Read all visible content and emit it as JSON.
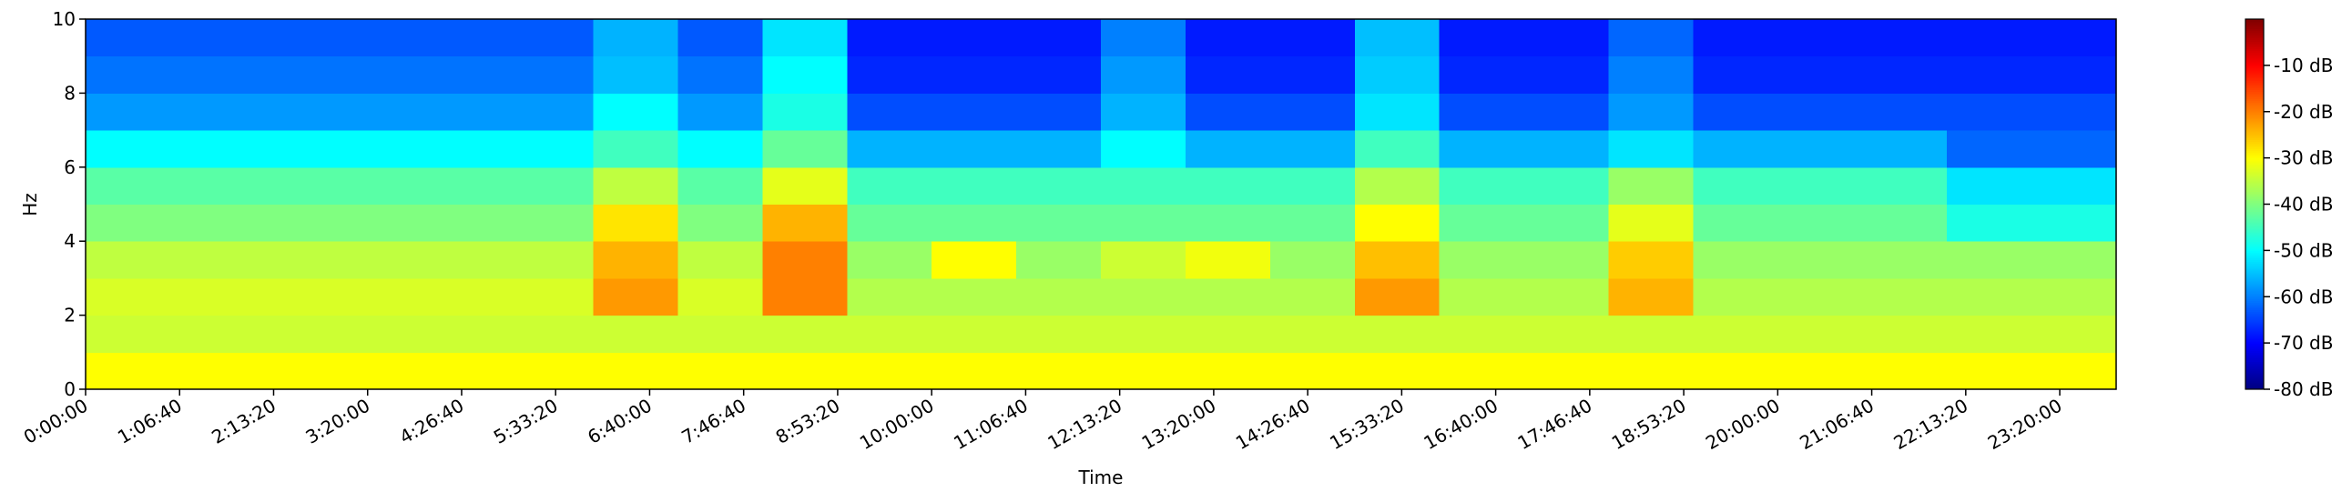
{
  "chart_data": {
    "type": "heatmap",
    "xlabel": "Time",
    "ylabel": "Hz",
    "colormap": "jet",
    "x": [
      1800,
      5400,
      9000,
      12600,
      16200,
      19800,
      23400,
      27000,
      30600,
      34200,
      37800,
      41400,
      45000,
      48600,
      52200,
      55800,
      59400,
      63000,
      66600,
      70200,
      73800,
      77400,
      81000,
      84600
    ],
    "y": [
      0.5,
      1.5,
      2.5,
      3.5,
      4.5,
      5.5,
      6.5,
      7.5,
      8.5,
      9.5
    ],
    "values": [
      [
        -30,
        -30,
        -30,
        -30,
        -30,
        -30,
        -30,
        -30,
        -30,
        -30,
        -30,
        -30,
        -30,
        -30,
        -30,
        -30,
        -30,
        -30,
        -30,
        -30,
        -30,
        -30,
        -30,
        -30
      ],
      [
        -34,
        -34,
        -34,
        -34,
        -34,
        -34,
        -34,
        -34,
        -34,
        -34,
        -34,
        -34,
        -34,
        -34,
        -34,
        -34,
        -34,
        -34,
        -34,
        -34,
        -34,
        -34,
        -34,
        -34
      ],
      [
        -33,
        -33,
        -33,
        -33,
        -33,
        -33,
        -22,
        -33,
        -20,
        -36,
        -36,
        -36,
        -36,
        -36,
        -36,
        -22,
        -36,
        -36,
        -24,
        -36,
        -36,
        -36,
        -36,
        -36
      ],
      [
        -35,
        -35,
        -35,
        -35,
        -35,
        -35,
        -24,
        -35,
        -20,
        -38,
        -30,
        -38,
        -34,
        -31,
        -38,
        -25,
        -38,
        -38,
        -26,
        -38,
        -38,
        -38,
        -38,
        -38
      ],
      [
        -40,
        -40,
        -40,
        -40,
        -40,
        -40,
        -28,
        -40,
        -24,
        -42,
        -42,
        -42,
        -42,
        -42,
        -42,
        -30,
        -42,
        -42,
        -32,
        -42,
        -42,
        -42,
        -48,
        -48
      ],
      [
        -43,
        -43,
        -43,
        -43,
        -43,
        -43,
        -35,
        -43,
        -32,
        -45,
        -45,
        -45,
        -45,
        -45,
        -45,
        -36,
        -45,
        -45,
        -38,
        -45,
        -45,
        -45,
        -52,
        -52
      ],
      [
        -50,
        -50,
        -50,
        -50,
        -50,
        -50,
        -45,
        -50,
        -42,
        -56,
        -56,
        -56,
        -50,
        -56,
        -56,
        -45,
        -56,
        -56,
        -52,
        -56,
        -56,
        -56,
        -62,
        -62
      ],
      [
        -58,
        -58,
        -58,
        -58,
        -58,
        -58,
        -50,
        -58,
        -48,
        -64,
        -64,
        -64,
        -56,
        -64,
        -64,
        -52,
        -64,
        -64,
        -58,
        -64,
        -64,
        -64,
        -64,
        -64
      ],
      [
        -61,
        -61,
        -61,
        -61,
        -61,
        -61,
        -55,
        -61,
        -50,
        -67,
        -67,
        -67,
        -58,
        -67,
        -67,
        -54,
        -67,
        -67,
        -60,
        -67,
        -67,
        -67,
        -67,
        -67
      ],
      [
        -63,
        -63,
        -63,
        -63,
        -63,
        -63,
        -56,
        -63,
        -52,
        -68,
        -68,
        -68,
        -60,
        -68,
        -68,
        -55,
        -68,
        -68,
        -62,
        -68,
        -68,
        -68,
        -68,
        -68
      ]
    ],
    "xlim": [
      0,
      86400
    ],
    "ylim": [
      0,
      10
    ],
    "xticks": [
      {
        "value": 0,
        "label": "0:00:00"
      },
      {
        "value": 4000,
        "label": "1:06:40"
      },
      {
        "value": 8000,
        "label": "2:13:20"
      },
      {
        "value": 12000,
        "label": "3:20:00"
      },
      {
        "value": 16000,
        "label": "4:26:40"
      },
      {
        "value": 20000,
        "label": "5:33:20"
      },
      {
        "value": 24000,
        "label": "6:40:00"
      },
      {
        "value": 28000,
        "label": "7:46:40"
      },
      {
        "value": 32000,
        "label": "8:53:20"
      },
      {
        "value": 36000,
        "label": "10:00:00"
      },
      {
        "value": 40000,
        "label": "11:06:40"
      },
      {
        "value": 44000,
        "label": "12:13:20"
      },
      {
        "value": 48000,
        "label": "13:20:00"
      },
      {
        "value": 52000,
        "label": "14:26:40"
      },
      {
        "value": 56000,
        "label": "15:33:20"
      },
      {
        "value": 60000,
        "label": "16:40:00"
      },
      {
        "value": 64000,
        "label": "17:46:40"
      },
      {
        "value": 68000,
        "label": "18:53:20"
      },
      {
        "value": 72000,
        "label": "20:00:00"
      },
      {
        "value": 76000,
        "label": "21:06:40"
      },
      {
        "value": 80000,
        "label": "22:13:20"
      },
      {
        "value": 84000,
        "label": "23:20:00"
      }
    ],
    "yticks": [
      0,
      2,
      4,
      6,
      8,
      10
    ],
    "clim": [
      -80,
      0
    ],
    "cticks": [
      {
        "value": -10,
        "label": "-10 dB"
      },
      {
        "value": -20,
        "label": "-20 dB"
      },
      {
        "value": -30,
        "label": "-30 dB"
      },
      {
        "value": -40,
        "label": "-40 dB"
      },
      {
        "value": -50,
        "label": "-50 dB"
      },
      {
        "value": -60,
        "label": "-60 dB"
      },
      {
        "value": -70,
        "label": "-70 dB"
      },
      {
        "value": -80,
        "label": "-80 dB"
      }
    ]
  }
}
